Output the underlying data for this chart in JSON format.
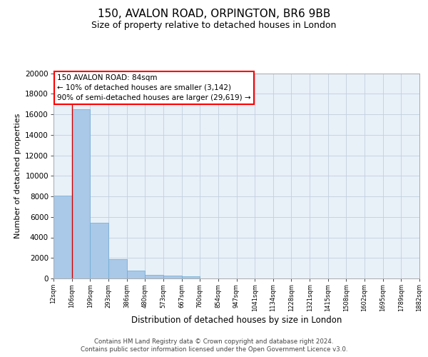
{
  "title": "150, AVALON ROAD, ORPINGTON, BR6 9BB",
  "subtitle": "Size of property relative to detached houses in London",
  "xlabel": "Distribution of detached houses by size in London",
  "ylabel": "Number of detached properties",
  "footer_line1": "Contains HM Land Registry data © Crown copyright and database right 2024.",
  "footer_line2": "Contains public sector information licensed under the Open Government Licence v3.0.",
  "annotation_line1": "150 AVALON ROAD: 84sqm",
  "annotation_line2": "← 10% of detached houses are smaller (3,142)",
  "annotation_line3": "90% of semi-detached houses are larger (29,619) →",
  "bar_values": [
    8100,
    16500,
    5400,
    1850,
    750,
    340,
    260,
    200,
    0,
    0,
    0,
    0,
    0,
    0,
    0,
    0,
    0,
    0,
    0,
    0
  ],
  "bin_labels": [
    "12sqm",
    "106sqm",
    "199sqm",
    "293sqm",
    "386sqm",
    "480sqm",
    "573sqm",
    "667sqm",
    "760sqm",
    "854sqm",
    "947sqm",
    "1041sqm",
    "1134sqm",
    "1228sqm",
    "1321sqm",
    "1415sqm",
    "1508sqm",
    "1602sqm",
    "1695sqm",
    "1789sqm",
    "1882sqm"
  ],
  "bar_color": "#aac8e8",
  "bar_edge_color": "#6aaad4",
  "grid_color": "#c0d0e0",
  "background_color": "#e8f0f8",
  "red_line_x": 1,
  "ylim": [
    0,
    20000
  ],
  "yticks": [
    0,
    2000,
    4000,
    6000,
    8000,
    10000,
    12000,
    14000,
    16000,
    18000,
    20000
  ]
}
